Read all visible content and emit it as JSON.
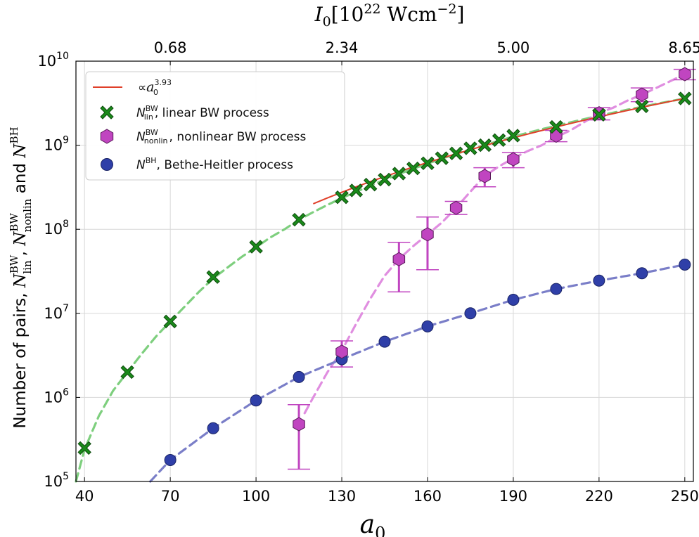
{
  "chart_data": {
    "type": "scatter",
    "title": "",
    "xlabel": "a_0",
    "ylabel": "Number of pairs, N_lin^BW, N_nonlin^BW and N^BH",
    "ylabel_parts": {
      "prefix": "Number of pairs, ",
      "sym_lin": "N",
      "sup_lin": "BW",
      "sub_lin": "lin",
      "sep1": ", ",
      "sym_nonlin": "N",
      "sup_nonlin": "BW",
      "sub_nonlin": "nonlin",
      "sep2": " and ",
      "sym_bh": "N",
      "sup_bh": "BH"
    },
    "x_range": [
      37,
      253
    ],
    "y_log_range": [
      5,
      10
    ],
    "x_ticks": [
      40,
      70,
      100,
      130,
      160,
      190,
      220,
      250
    ],
    "y_ticks": [
      {
        "exp": 5,
        "base": "10",
        "sup": "5"
      },
      {
        "exp": 6,
        "base": "10",
        "sup": "6"
      },
      {
        "exp": 7,
        "base": "10",
        "sup": "7"
      },
      {
        "exp": 8,
        "base": "10",
        "sup": "8"
      },
      {
        "exp": 9,
        "base": "10",
        "sup": "9"
      },
      {
        "exp": 10,
        "base": "10",
        "sup": "10"
      }
    ],
    "top_axis": {
      "label_sym": "I",
      "label_sub": "0",
      "label_bracket": "[10",
      "label_exp": "22",
      "label_unit": " Wcm",
      "label_unit_exp": "−2",
      "label_close": "]",
      "ticks": [
        {
          "a0": 70,
          "label": "0.68"
        },
        {
          "a0": 130,
          "label": "2.34"
        },
        {
          "a0": 190,
          "label": "5.00"
        },
        {
          "a0": 250,
          "label": "8.65"
        }
      ]
    },
    "legend": {
      "position": "top-left",
      "fit": {
        "prefix": "∝",
        "sym": "a",
        "sub": "0",
        "sup": "3.93"
      },
      "lin": {
        "sym": "N",
        "sub": "lin",
        "sup": "BW",
        "text": ", linear BW process"
      },
      "nonlin": {
        "sym": "N",
        "sub": "nonlin",
        "sup": "BW",
        "text": ", nonlinear BW process"
      },
      "bh": {
        "sym": "N",
        "sup": "BH",
        "text": ", Bethe-Heitler process"
      }
    },
    "colors": {
      "lin": "#1a8a1a",
      "lin_dash": "#7ecf7e",
      "nonlin": "#c045c0",
      "nonlin_dash": "#e08ee0",
      "bh": "#2f3fa8",
      "bh_dash": "#7a7ec8",
      "fit": "#e0402a",
      "grid": "#d8d8d8"
    },
    "series": [
      {
        "name": "N_lin^BW, linear BW process",
        "marker": "x",
        "x": [
          40,
          55,
          70,
          85,
          100,
          115,
          130,
          135,
          140,
          145,
          150,
          155,
          160,
          165,
          170,
          175,
          180,
          185,
          190,
          205,
          220,
          235,
          250
        ],
        "y": [
          250000,
          2000000,
          8000000,
          27000000,
          62000000,
          130000000,
          240000000,
          290000000,
          340000000,
          390000000,
          460000000,
          530000000,
          610000000,
          700000000,
          800000000,
          920000000,
          1000000000,
          1150000000,
          1300000000,
          1650000000,
          2300000000,
          2900000000,
          3600000000
        ]
      },
      {
        "name": "N_nonlin^BW, nonlinear BW process",
        "marker": "hexagon",
        "x": [
          115,
          130,
          150,
          160,
          170,
          180,
          190,
          205,
          220,
          235,
          250
        ],
        "y": [
          480000,
          3500000,
          44000000,
          87000000,
          180000000,
          430000000,
          680000000,
          1300000000,
          2400000000,
          4000000000,
          7000000000
        ],
        "err_low": [
          140000,
          2300000,
          18000000,
          33000000,
          150000000,
          320000000,
          540000000,
          1100000000,
          2000000000,
          3300000000,
          6000000000
        ],
        "err_high": [
          820000,
          4700000,
          70000000,
          140000000,
          215000000,
          540000000,
          820000000,
          1500000000,
          2800000000,
          4800000000,
          8000000000
        ]
      },
      {
        "name": "N^BH, Bethe-Heitler process",
        "marker": "circle",
        "x": [
          70,
          85,
          100,
          115,
          130,
          145,
          160,
          175,
          190,
          205,
          220,
          235,
          250
        ],
        "y": [
          180000,
          430000,
          920000,
          1750000,
          2850000,
          4600000,
          7000000,
          10000000,
          14500000,
          19500000,
          24500000,
          30000000,
          38000000
        ]
      }
    ],
    "dashed_fits": [
      {
        "series": "lin",
        "x": [
          37,
          40,
          45,
          50,
          55,
          60,
          65,
          70,
          75,
          80,
          85,
          90,
          95,
          100,
          105,
          110,
          115,
          120,
          125,
          130,
          140,
          150,
          160,
          170,
          180,
          190,
          200,
          210,
          220,
          230,
          240,
          250
        ],
        "y": [
          100000,
          240000,
          600000,
          1200000,
          2000000,
          3300000,
          5300000,
          8000000,
          12000000,
          18000000,
          26000000,
          35000000,
          47000000,
          61000000,
          80000000,
          100000000,
          130000000,
          160000000,
          195000000,
          235000000,
          330000000,
          455000000,
          605000000,
          790000000,
          1000000000,
          1270000000,
          1550000000,
          1870000000,
          2250000000,
          2650000000,
          3100000000,
          3600000000
        ]
      },
      {
        "series": "nonlin",
        "x": [
          117,
          120,
          125,
          130,
          135,
          140,
          145,
          150,
          155,
          160,
          165,
          170,
          175,
          180,
          185,
          190,
          195,
          200,
          205,
          210,
          215,
          220,
          225,
          230,
          235,
          240,
          245,
          250
        ],
        "y": [
          650000,
          1000000,
          2000000,
          3600000,
          7500000,
          15000000,
          28000000,
          44000000,
          63000000,
          87000000,
          120000000,
          180000000,
          280000000,
          430000000,
          560000000,
          700000000,
          850000000,
          1000000000,
          1250000000,
          1500000000,
          1900000000,
          2400000000,
          2800000000,
          3400000000,
          4000000000,
          4800000000,
          5800000000,
          7000000000
        ]
      },
      {
        "series": "bh",
        "x": [
          63,
          70,
          85,
          100,
          115,
          130,
          145,
          160,
          175,
          190,
          205,
          220,
          235,
          250
        ],
        "y": [
          100000,
          180000,
          430000,
          920000,
          1750000,
          2850000,
          4600000,
          7000000,
          10000000,
          14500000,
          19500000,
          24500000,
          30000000,
          38000000
        ]
      }
    ],
    "power_fit": {
      "exponent": 3.93,
      "x_start": 120,
      "x_end": 250,
      "y_at_250": 3600000000
    }
  }
}
